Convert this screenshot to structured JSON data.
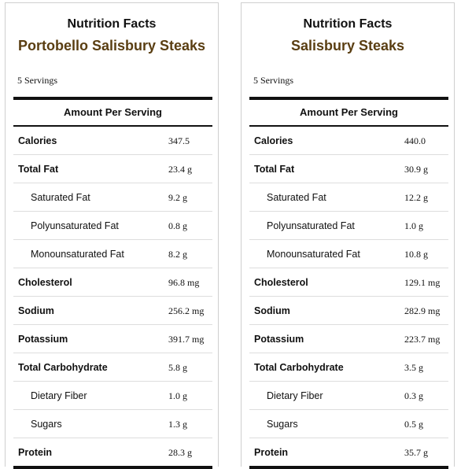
{
  "colors": {
    "subtitle": "#5a3e12",
    "text": "#111111",
    "rule": "#111111"
  },
  "panels": [
    {
      "title": "Nutrition Facts",
      "subtitle": "Portobello Salisbury Steaks",
      "servings": "5 Servings",
      "amount_per_serving": "Amount Per Serving",
      "rows": [
        {
          "label": "Calories",
          "value": "347.5",
          "level": "main"
        },
        {
          "label": "Total Fat",
          "value": "23.4 g",
          "level": "main"
        },
        {
          "label": "Saturated Fat",
          "value": "9.2 g",
          "level": "sub"
        },
        {
          "label": "Polyunsaturated Fat",
          "value": "0.8 g",
          "level": "sub"
        },
        {
          "label": "Monounsaturated Fat",
          "value": "8.2 g",
          "level": "sub"
        },
        {
          "label": "Cholesterol",
          "value": "96.8 mg",
          "level": "main"
        },
        {
          "label": "Sodium",
          "value": "256.2 mg",
          "level": "main"
        },
        {
          "label": "Potassium",
          "value": "391.7 mg",
          "level": "main"
        },
        {
          "label": "Total Carbohydrate",
          "value": "5.8 g",
          "level": "main"
        },
        {
          "label": "Dietary Fiber",
          "value": "1.0 g",
          "level": "sub"
        },
        {
          "label": "Sugars",
          "value": "1.3 g",
          "level": "sub"
        },
        {
          "label": "Protein",
          "value": "28.3 g",
          "level": "main"
        }
      ]
    },
    {
      "title": "Nutrition Facts",
      "subtitle": "Salisbury Steaks",
      "servings": "5 Servings",
      "amount_per_serving": "Amount Per Serving",
      "rows": [
        {
          "label": "Calories",
          "value": "440.0",
          "level": "main"
        },
        {
          "label": "Total Fat",
          "value": "30.9 g",
          "level": "main"
        },
        {
          "label": "Saturated Fat",
          "value": "12.2 g",
          "level": "sub"
        },
        {
          "label": "Polyunsaturated Fat",
          "value": "1.0 g",
          "level": "sub"
        },
        {
          "label": "Monounsaturated Fat",
          "value": "10.8 g",
          "level": "sub"
        },
        {
          "label": "Cholesterol",
          "value": "129.1 mg",
          "level": "main"
        },
        {
          "label": "Sodium",
          "value": "282.9 mg",
          "level": "main"
        },
        {
          "label": "Potassium",
          "value": "223.7 mg",
          "level": "main"
        },
        {
          "label": "Total Carbohydrate",
          "value": "3.5 g",
          "level": "main"
        },
        {
          "label": "Dietary Fiber",
          "value": "0.3 g",
          "level": "sub"
        },
        {
          "label": "Sugars",
          "value": "0.5 g",
          "level": "sub"
        },
        {
          "label": "Protein",
          "value": "35.7 g",
          "level": "main"
        }
      ]
    }
  ]
}
